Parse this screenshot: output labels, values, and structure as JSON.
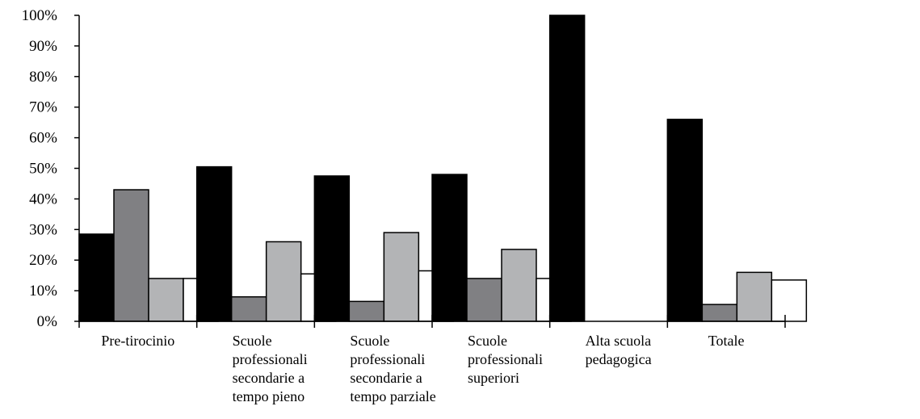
{
  "chart_data": {
    "type": "bar",
    "title": "",
    "xlabel": "",
    "ylabel": "",
    "ylim": [
      0,
      100
    ],
    "y_ticks": [
      "0%",
      "10%",
      "20%",
      "30%",
      "40%",
      "50%",
      "60%",
      "70%",
      "80%",
      "90%",
      "100%"
    ],
    "grid": false,
    "legend": "none",
    "categories": [
      [
        "Pre-tirocinio"
      ],
      [
        "Scuole",
        "professionali",
        "secondarie a",
        "tempo pieno"
      ],
      [
        "Scuole",
        "professionali",
        "secondarie a",
        "tempo parziale"
      ],
      [
        "Scuole",
        "professionali",
        "superiori"
      ],
      [
        "Alta scuola",
        "pedagogica"
      ],
      [
        "Totale"
      ]
    ],
    "series": [
      {
        "color": "#000000",
        "values": [
          28.5,
          50.5,
          47.5,
          48,
          100,
          66
        ]
      },
      {
        "color": "#808083",
        "values": [
          43,
          8,
          6.5,
          14,
          0,
          5.5
        ]
      },
      {
        "color": "#b3b4b6",
        "values": [
          14,
          26,
          29,
          23.5,
          0,
          16
        ]
      },
      {
        "color": "#ffffff",
        "values": [
          14,
          15.5,
          16.5,
          14,
          0,
          13.5
        ]
      }
    ]
  }
}
